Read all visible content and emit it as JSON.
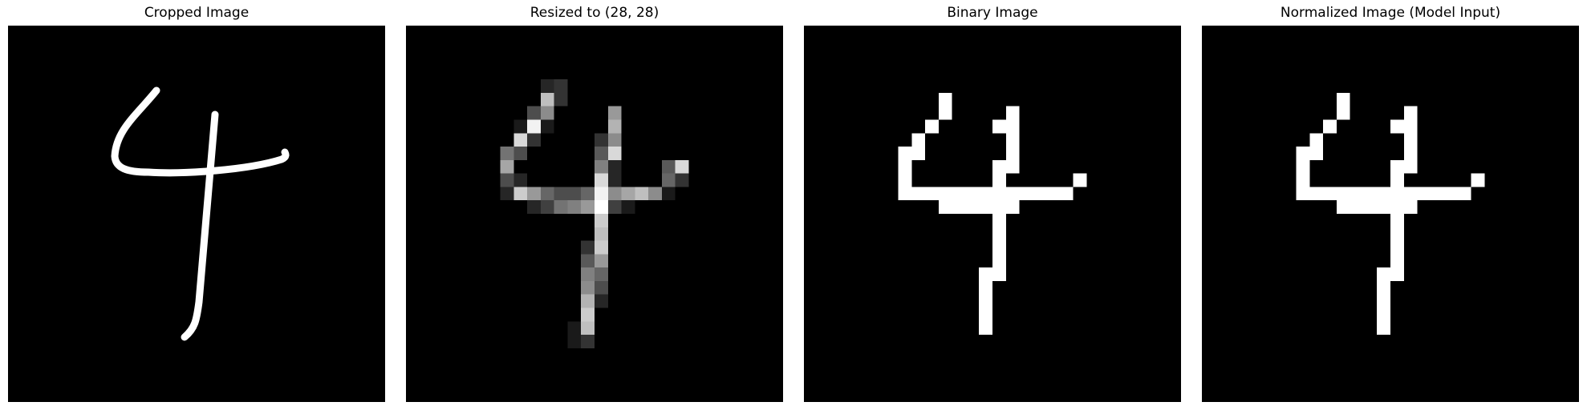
{
  "figure": {
    "panels": [
      {
        "id": "cropped",
        "title": "Cropped Image",
        "kind": "stroke"
      },
      {
        "id": "resized",
        "title": "Resized to (28, 28)",
        "kind": "gray"
      },
      {
        "id": "binary",
        "title": "Binary Image",
        "kind": "binary"
      },
      {
        "id": "normalized",
        "title": "Normalized Image (Model Input)",
        "kind": "binary"
      }
    ],
    "colors": {
      "background": "#000000",
      "foreground": "#ffffff",
      "page": "#ffffff"
    },
    "digit_shown": "4",
    "grid_size": [
      28,
      28
    ]
  }
}
